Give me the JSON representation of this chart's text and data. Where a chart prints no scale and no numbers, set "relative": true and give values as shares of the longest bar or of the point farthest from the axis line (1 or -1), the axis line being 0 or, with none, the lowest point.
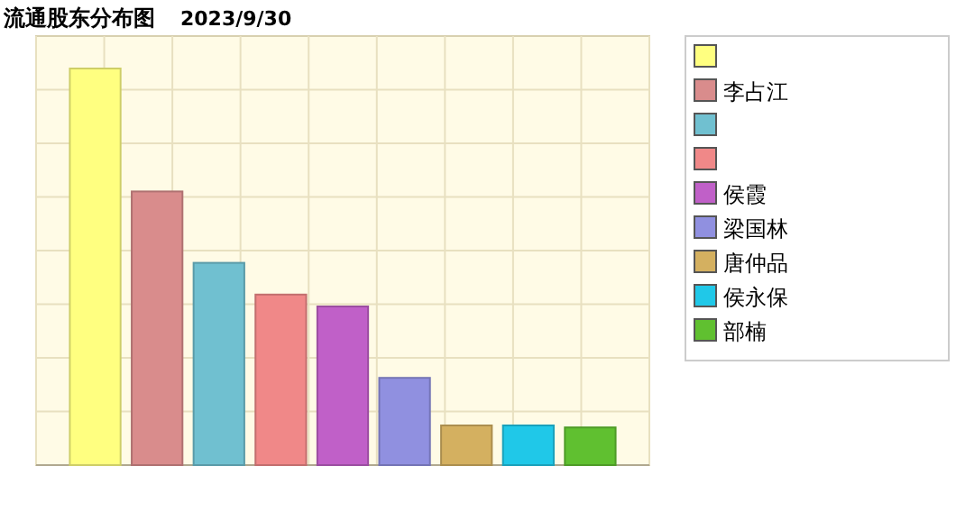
{
  "chart_data": {
    "type": "bar",
    "title": "流通股东分布图",
    "subtitle": "2023/9/30",
    "relative": true,
    "grid": true,
    "legend": "right",
    "categories": [
      null
    ],
    "series": [
      {
        "color": "#ffff80",
        "values": [
          1
        ]
      },
      {
        "name": "李占江",
        "color": "#d98c8c",
        "values": [
          0.69
        ]
      },
      {
        "color": "#70c0d0",
        "values": [
          0.51
        ]
      },
      {
        "color": "#f08888",
        "values": [
          0.43
        ]
      },
      {
        "name": "侯霞",
        "color": "#c060c8",
        "values": [
          0.4
        ]
      },
      {
        "name": "梁国林",
        "color": "#9090e0",
        "values": [
          0.22
        ]
      },
      {
        "name": "唐仲品",
        "color": "#d4b060",
        "values": [
          0.1
        ]
      },
      {
        "name": "侯永保",
        "color": "#20c8e8",
        "values": [
          0.1
        ]
      },
      {
        "name": "部楠",
        "color": "#60c030",
        "values": [
          0.095
        ]
      }
    ]
  }
}
